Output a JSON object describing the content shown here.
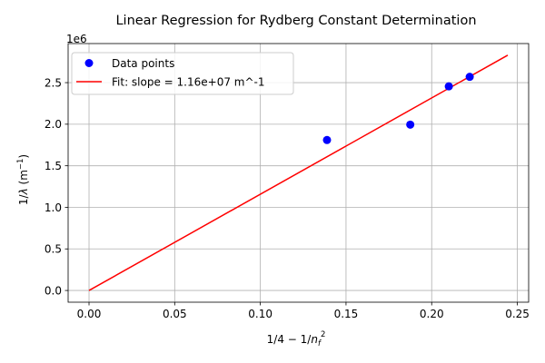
{
  "chart_data": {
    "type": "scatter",
    "title": "Linear Regression for Rydberg Constant Determination",
    "xlabel": "1/4 − 1/n_f^2",
    "ylabel": "1/λ (m^−1)",
    "y_offset_label": "1e6",
    "x_ticks": [
      0.0,
      0.05,
      0.1,
      0.15,
      0.2,
      0.25
    ],
    "x_tick_labels": [
      "0.00",
      "0.05",
      "0.10",
      "0.15",
      "0.20",
      "0.25"
    ],
    "y_ticks": [
      0.0,
      0.5,
      1.0,
      1.5,
      2.0,
      2.5
    ],
    "y_tick_labels": [
      "0.0",
      "0.5",
      "1.0",
      "1.5",
      "2.0",
      "2.5"
    ],
    "xlim": [
      -0.0122,
      0.2566
    ],
    "ylim": [
      -141000,
      2970000
    ],
    "grid": true,
    "legend_position": "top-left",
    "series": [
      {
        "name": "Data points",
        "kind": "scatter",
        "color": "#0000ff",
        "x": [
          0.1389,
          0.1875,
          0.21,
          0.2222
        ],
        "y": [
          1810000,
          1995000,
          2455000,
          2570000
        ]
      },
      {
        "name": "Fit: slope = 1.16e+07 m^-1",
        "kind": "line",
        "color": "#ff0000",
        "x": [
          0.0,
          0.2444
        ],
        "y": [
          0,
          2830000
        ]
      }
    ]
  }
}
